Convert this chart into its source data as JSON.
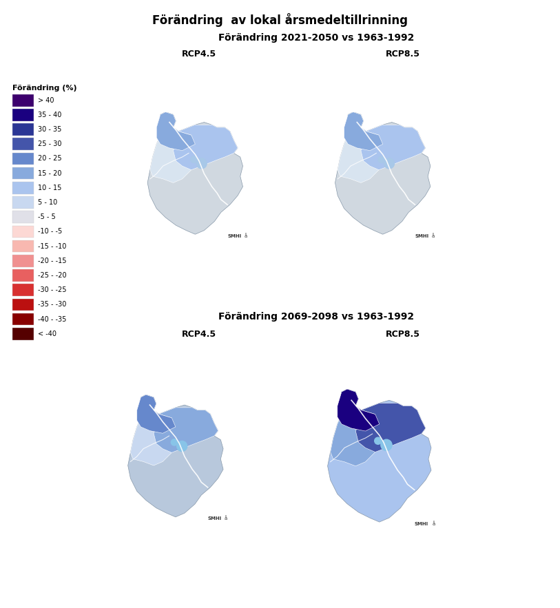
{
  "title": "Förändring  av lokal årsmedeltillrinning",
  "subtitle1": "Förändring 2021-2050 vs 1963-1992",
  "subtitle2": "Förändring 2069-2098 vs 1963-1992",
  "rcp45": "RCP4.5",
  "rcp85": "RCP8.5",
  "legend_title": "Förändring (%)",
  "legend_entries": [
    {
      "label": "> 40",
      "color": "#3d006e"
    },
    {
      "label": "35 - 40",
      "color": "#1a0080"
    },
    {
      "label": "30 - 35",
      "color": "#2b3695"
    },
    {
      "label": "25 - 30",
      "color": "#4455aa"
    },
    {
      "label": "20 - 25",
      "color": "#6688cc"
    },
    {
      "label": "15 - 20",
      "color": "#88aadd"
    },
    {
      "label": "10 - 15",
      "color": "#aac4ee"
    },
    {
      "label": "5 - 10",
      "color": "#c8d8f0"
    },
    {
      "label": "-5 - 5",
      "color": "#e0e0e8"
    },
    {
      "label": "-10 - -5",
      "color": "#fcd8d4"
    },
    {
      "label": "-15 - -10",
      "color": "#f8b8b0"
    },
    {
      "label": "-20 - -15",
      "color": "#f09090"
    },
    {
      "label": "-25 - -20",
      "color": "#e86060"
    },
    {
      "label": "-30 - -25",
      "color": "#d83030"
    },
    {
      "label": "-35 - -30",
      "color": "#bb1010"
    },
    {
      "label": "-40 - -35",
      "color": "#880000"
    },
    {
      "label": "< -40",
      "color": "#550000"
    }
  ],
  "background_color": "#ffffff",
  "font_size_title": 12,
  "font_size_subtitle": 10,
  "font_size_rcp": 9,
  "font_size_legend_title": 8,
  "font_size_legend": 7
}
